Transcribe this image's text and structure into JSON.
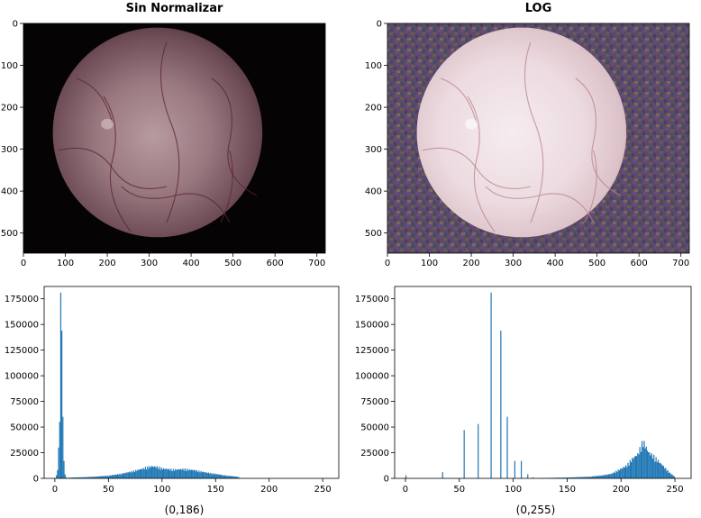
{
  "colors": {
    "hist_blue": "#1f77b4",
    "axis": "#000000",
    "background": "#ffffff"
  },
  "chart_data": [
    {
      "type": "image",
      "panel": "top-left",
      "title": "Sin Normalizar",
      "xlim": [
        0,
        720
      ],
      "ylim": [
        548,
        0
      ],
      "xticks": [
        0,
        100,
        200,
        300,
        400,
        500,
        600,
        700
      ],
      "yticks": [
        0,
        100,
        200,
        300,
        400,
        500
      ],
      "description_kind": "endoscopic image, dark background"
    },
    {
      "type": "image",
      "panel": "top-right",
      "title": "LOG",
      "xlim": [
        0,
        720
      ],
      "ylim": [
        548,
        0
      ],
      "xticks": [
        0,
        100,
        200,
        300,
        400,
        500,
        600,
        700
      ],
      "yticks": [
        0,
        100,
        200,
        300,
        400,
        500
      ],
      "description_kind": "log-normalized endoscopic image, noisy purple background"
    },
    {
      "type": "bar",
      "panel": "bottom-left",
      "title": "",
      "caption": "(0,186)",
      "xlim": [
        -10,
        265
      ],
      "ylim": [
        0,
        187000
      ],
      "xticks": [
        0,
        50,
        100,
        150,
        200,
        250
      ],
      "yticks": [
        0,
        25000,
        50000,
        75000,
        100000,
        125000,
        150000,
        175000
      ],
      "bins": [
        {
          "x": 1,
          "y": 3000
        },
        {
          "x": 2,
          "y": 8000
        },
        {
          "x": 3,
          "y": 30000
        },
        {
          "x": 4,
          "y": 55000
        },
        {
          "x": 5,
          "y": 181000
        },
        {
          "x": 6,
          "y": 144000
        },
        {
          "x": 7,
          "y": 60000
        },
        {
          "x": 8,
          "y": 17000
        },
        {
          "x": 9,
          "y": 4000
        },
        {
          "x": 10,
          "y": 1200
        }
      ],
      "hump": [
        {
          "x": 12,
          "y": 600
        },
        {
          "x": 20,
          "y": 900
        },
        {
          "x": 30,
          "y": 1200
        },
        {
          "x": 40,
          "y": 1800
        },
        {
          "x": 50,
          "y": 2500
        },
        {
          "x": 60,
          "y": 4000
        },
        {
          "x": 70,
          "y": 6000
        },
        {
          "x": 80,
          "y": 8500
        },
        {
          "x": 85,
          "y": 10000
        },
        {
          "x": 90,
          "y": 11000
        },
        {
          "x": 95,
          "y": 10500
        },
        {
          "x": 100,
          "y": 9000
        },
        {
          "x": 110,
          "y": 8000
        },
        {
          "x": 120,
          "y": 8500
        },
        {
          "x": 130,
          "y": 7500
        },
        {
          "x": 140,
          "y": 5500
        },
        {
          "x": 150,
          "y": 4000
        },
        {
          "x": 160,
          "y": 2500
        },
        {
          "x": 170,
          "y": 1500
        },
        {
          "x": 173,
          "y": 300
        }
      ]
    },
    {
      "type": "bar",
      "panel": "bottom-right",
      "title": "",
      "caption": "(0,255)",
      "xlim": [
        -10,
        265
      ],
      "ylim": [
        0,
        187000
      ],
      "xticks": [
        0,
        50,
        100,
        150,
        200,
        250
      ],
      "yticks": [
        0,
        25000,
        50000,
        75000,
        100000,
        125000,
        150000,
        175000
      ],
      "bins": [
        {
          "x": 0,
          "y": 3000
        },
        {
          "x": 34,
          "y": 6000
        },
        {
          "x": 54,
          "y": 47000
        },
        {
          "x": 67,
          "y": 53000
        },
        {
          "x": 79,
          "y": 181000
        },
        {
          "x": 88,
          "y": 144000
        },
        {
          "x": 94,
          "y": 60000
        },
        {
          "x": 101,
          "y": 17000
        },
        {
          "x": 107,
          "y": 17000
        },
        {
          "x": 113,
          "y": 4000
        },
        {
          "x": 118,
          "y": 1000
        }
      ],
      "hump": [
        {
          "x": 125,
          "y": 300
        },
        {
          "x": 150,
          "y": 800
        },
        {
          "x": 170,
          "y": 1500
        },
        {
          "x": 180,
          "y": 2500
        },
        {
          "x": 190,
          "y": 4000
        },
        {
          "x": 200,
          "y": 9000
        },
        {
          "x": 205,
          "y": 12000
        },
        {
          "x": 210,
          "y": 18000
        },
        {
          "x": 215,
          "y": 22000
        },
        {
          "x": 220,
          "y": 34000
        },
        {
          "x": 225,
          "y": 24000
        },
        {
          "x": 230,
          "y": 20000
        },
        {
          "x": 235,
          "y": 15000
        },
        {
          "x": 240,
          "y": 10000
        },
        {
          "x": 245,
          "y": 5000
        },
        {
          "x": 250,
          "y": 1000
        }
      ]
    }
  ]
}
